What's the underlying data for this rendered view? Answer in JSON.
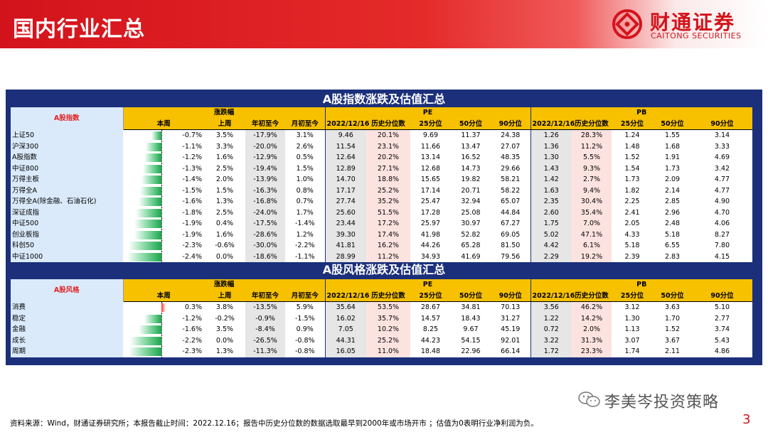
{
  "header": {
    "title": "国内行业汇总",
    "brand_cn": "财通证券",
    "brand_en": "CAITONG SECURITIES",
    "color": "#d3131b"
  },
  "section1": {
    "title": "A股指数涨跌及估值汇总",
    "label_header": "A股指数",
    "group_change": "涨跌幅",
    "group_pe": "PE",
    "group_pb": "PB",
    "cols_change": [
      "本周",
      "上周",
      "年初至今",
      "月初至今"
    ],
    "cols_val": [
      "2022/12/16",
      "历史分位数",
      "25分位",
      "50分位",
      "90分位"
    ],
    "rows": [
      {
        "name": "上证50",
        "week": "-0.7%",
        "w": -0.7,
        "last": "3.5%",
        "ytd": "-17.9%",
        "mtd": "3.1%",
        "pe": [
          "9.46",
          "20.1%",
          "9.69",
          "11.37",
          "24.38"
        ],
        "pb": [
          "1.26",
          "28.3%",
          "1.24",
          "1.55",
          "3.14"
        ]
      },
      {
        "name": "沪深300",
        "week": "-1.1%",
        "w": -1.1,
        "last": "3.3%",
        "ytd": "-20.0%",
        "mtd": "2.6%",
        "pe": [
          "11.54",
          "23.1%",
          "11.66",
          "13.47",
          "27.07"
        ],
        "pb": [
          "1.36",
          "11.2%",
          "1.48",
          "1.68",
          "3.33"
        ]
      },
      {
        "name": "A股指数",
        "week": "-1.2%",
        "w": -1.2,
        "last": "1.6%",
        "ytd": "-12.9%",
        "mtd": "0.5%",
        "pe": [
          "12.64",
          "20.2%",
          "13.14",
          "16.52",
          "48.35"
        ],
        "pb": [
          "1.30",
          "5.5%",
          "1.52",
          "1.91",
          "4.69"
        ]
      },
      {
        "name": "中证800",
        "week": "-1.3%",
        "w": -1.3,
        "last": "2.5%",
        "ytd": "-19.4%",
        "mtd": "1.5%",
        "pe": [
          "12.89",
          "27.1%",
          "12.68",
          "14.73",
          "29.66"
        ],
        "pb": [
          "1.43",
          "9.3%",
          "1.54",
          "1.73",
          "3.42"
        ]
      },
      {
        "name": "万得主板",
        "week": "-1.4%",
        "w": -1.4,
        "last": "2.0%",
        "ytd": "-13.9%",
        "mtd": "1.0%",
        "pe": [
          "14.70",
          "18.8%",
          "15.65",
          "19.82",
          "58.21"
        ],
        "pb": [
          "1.42",
          "2.7%",
          "1.73",
          "2.09",
          "4.77"
        ]
      },
      {
        "name": "万得全A",
        "week": "-1.5%",
        "w": -1.5,
        "last": "1.5%",
        "ytd": "-16.3%",
        "mtd": "0.8%",
        "pe": [
          "17.17",
          "25.2%",
          "17.14",
          "20.71",
          "58.22"
        ],
        "pb": [
          "1.63",
          "9.4%",
          "1.82",
          "2.14",
          "4.77"
        ]
      },
      {
        "name": "万得全A(除金融、石油石化)",
        "week": "-1.6%",
        "w": -1.6,
        "last": "1.3%",
        "ytd": "-16.8%",
        "mtd": "0.7%",
        "pe": [
          "27.74",
          "35.2%",
          "25.47",
          "32.94",
          "65.07"
        ],
        "pb": [
          "2.35",
          "30.4%",
          "2.25",
          "2.85",
          "4.90"
        ]
      },
      {
        "name": "深证成指",
        "week": "-1.8%",
        "w": -1.8,
        "last": "2.5%",
        "ytd": "-24.0%",
        "mtd": "1.7%",
        "pe": [
          "25.60",
          "51.5%",
          "17.28",
          "25.08",
          "44.84"
        ],
        "pb": [
          "2.60",
          "35.4%",
          "2.41",
          "2.96",
          "4.70"
        ]
      },
      {
        "name": "中证500",
        "week": "-1.9%",
        "w": -1.9,
        "last": "0.4%",
        "ytd": "-17.5%",
        "mtd": "-1.4%",
        "pe": [
          "23.44",
          "17.2%",
          "25.97",
          "30.97",
          "67.27"
        ],
        "pb": [
          "1.75",
          "7.0%",
          "2.05",
          "2.48",
          "4.06"
        ]
      },
      {
        "name": "创业板指",
        "week": "-1.9%",
        "w": -1.9,
        "last": "1.6%",
        "ytd": "-28.6%",
        "mtd": "1.2%",
        "pe": [
          "39.30",
          "17.4%",
          "41.98",
          "52.82",
          "69.05"
        ],
        "pb": [
          "5.02",
          "47.1%",
          "4.33",
          "5.18",
          "8.27"
        ]
      },
      {
        "name": "科创50",
        "week": "-2.3%",
        "w": -2.3,
        "last": "-0.6%",
        "ytd": "-30.0%",
        "mtd": "-2.2%",
        "pe": [
          "41.81",
          "16.2%",
          "44.26",
          "65.28",
          "81.50"
        ],
        "pb": [
          "4.42",
          "6.1%",
          "5.18",
          "6.55",
          "7.80"
        ]
      },
      {
        "name": "中证1000",
        "week": "-2.4%",
        "w": -2.4,
        "last": "0.0%",
        "ytd": "-18.6%",
        "mtd": "-1.1%",
        "pe": [
          "28.99",
          "11.2%",
          "34.93",
          "41.69",
          "79.56"
        ],
        "pb": [
          "2.29",
          "19.2%",
          "2.39",
          "2.83",
          "4.15"
        ]
      }
    ]
  },
  "section2": {
    "title": "A股风格涨跌及估值汇总",
    "label_header": "A股风格",
    "group_change": "涨跌幅",
    "group_pe": "PE",
    "group_pb": "PB",
    "cols_change": [
      "本周",
      "上周",
      "年初至今",
      "月初至今"
    ],
    "cols_val": [
      "2022/12/16",
      "历史分位数",
      "25分位",
      "50分位",
      "90分位"
    ],
    "rows": [
      {
        "name": "消费",
        "week": "0.3%",
        "w": 0.3,
        "last": "3.8%",
        "ytd": "-13.5%",
        "mtd": "5.9%",
        "pe": [
          "35.64",
          "53.5%",
          "28.67",
          "34.81",
          "70.13"
        ],
        "pb": [
          "3.56",
          "46.2%",
          "3.12",
          "3.63",
          "5.10"
        ]
      },
      {
        "name": "稳定",
        "week": "-1.2%",
        "w": -1.2,
        "last": "-0.2%",
        "ytd": "-0.9%",
        "mtd": "-1.5%",
        "pe": [
          "16.02",
          "35.7%",
          "14.57",
          "18.43",
          "31.27"
        ],
        "pb": [
          "1.22",
          "14.2%",
          "1.30",
          "1.70",
          "2.77"
        ]
      },
      {
        "name": "金融",
        "week": "-1.6%",
        "w": -1.6,
        "last": "3.5%",
        "ytd": "-8.4%",
        "mtd": "0.9%",
        "pe": [
          "7.05",
          "10.2%",
          "8.25",
          "9.67",
          "45.19"
        ],
        "pb": [
          "0.72",
          "2.0%",
          "1.13",
          "1.52",
          "3.74"
        ]
      },
      {
        "name": "成长",
        "week": "-2.2%",
        "w": -2.2,
        "last": "0.0%",
        "ytd": "-26.5%",
        "mtd": "-0.8%",
        "pe": [
          "44.31",
          "25.2%",
          "44.23",
          "54.15",
          "92.01"
        ],
        "pb": [
          "3.22",
          "31.3%",
          "3.07",
          "3.67",
          "5.43"
        ]
      },
      {
        "name": "周期",
        "week": "-2.3%",
        "w": -2.3,
        "last": "1.3%",
        "ytd": "-11.3%",
        "mtd": "-0.8%",
        "pe": [
          "16.05",
          "11.0%",
          "18.48",
          "22.96",
          "66.14"
        ],
        "pb": [
          "1.72",
          "23.3%",
          "1.74",
          "2.11",
          "4.86"
        ]
      }
    ]
  },
  "footnote": "资料来源：Wind，财通证券研究所；本报告截止时间：2022.12.16；报告中历史分位数的数据选取最早到2000年或市场开市 ；估值为0表明行业净利润为负。",
  "watermark": "李美岑投资策略",
  "page_number": "3"
}
